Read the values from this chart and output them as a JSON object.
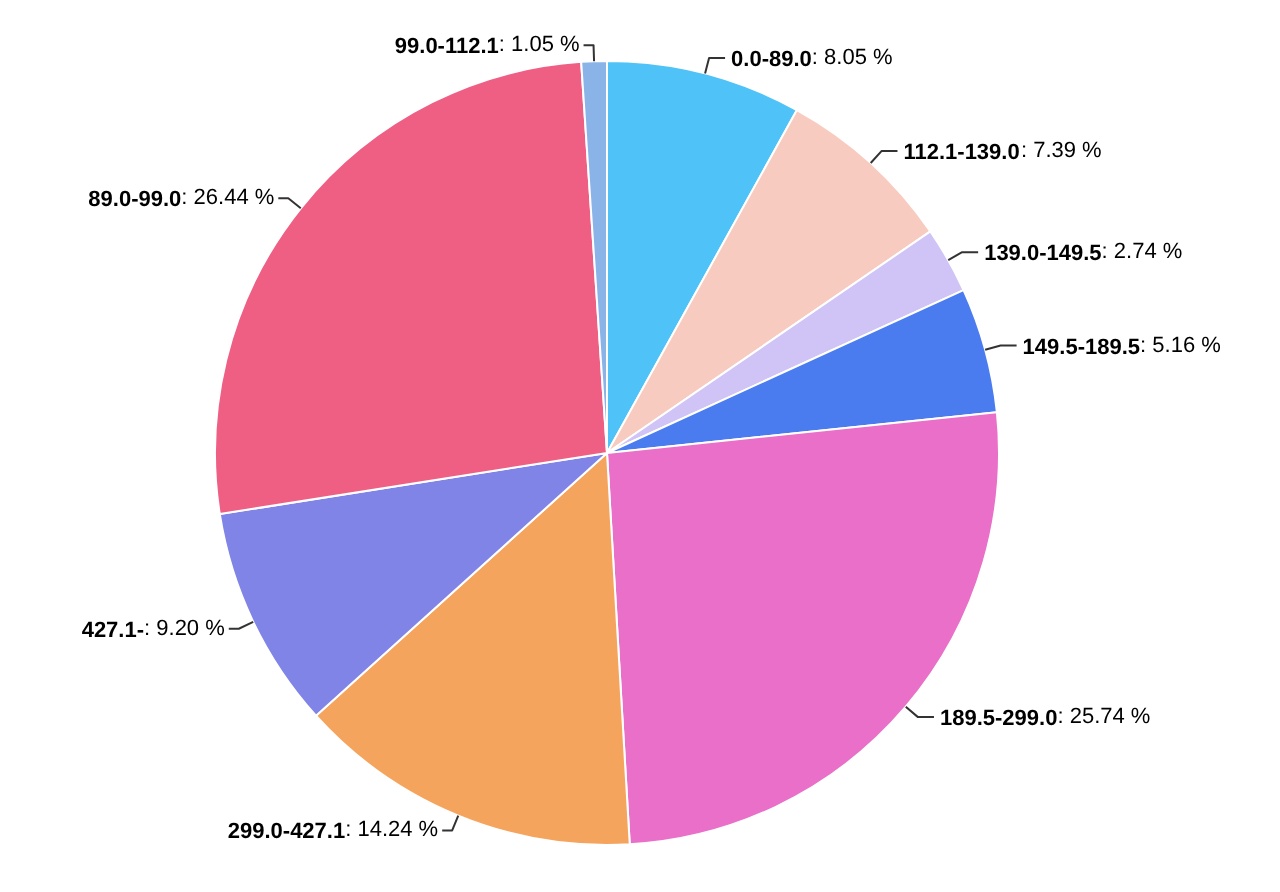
{
  "chart_data": {
    "type": "pie",
    "categories": [
      "0.0-89.0",
      "112.1-139.0",
      "139.0-149.5",
      "149.5-189.5",
      "189.5-299.0",
      "299.0-427.1",
      "427.1-",
      "89.0-99.0",
      "99.0-112.1"
    ],
    "values": [
      8.05,
      7.39,
      2.74,
      5.16,
      25.74,
      14.24,
      9.2,
      26.44,
      1.05
    ],
    "colors": [
      "#4fc3f7",
      "#f8cbc0",
      "#d0c4f7",
      "#4a7cf0",
      "#e96fc8",
      "#f5a45d",
      "#7f84e6",
      "#ef5f84",
      "#8ab4e8"
    ],
    "value_labels": [
      ": 8.05 %",
      ": 7.39 %",
      ": 2.74 %",
      ": 5.16 %",
      ": 25.74 %",
      ": 14.24 %",
      ": 9.20 %",
      ": 26.44 %",
      ": 1.05 %"
    ]
  }
}
